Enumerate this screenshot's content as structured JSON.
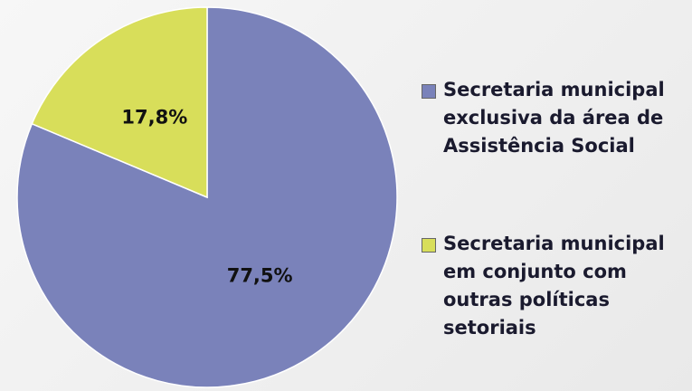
{
  "chart_data": {
    "type": "pie",
    "categories": [
      "Secretaria municipal exclusiva da área de Assistência Social",
      "Secretaria municipal em conjunto com outras políticas setoriais"
    ],
    "values": [
      77.5,
      17.8
    ],
    "value_labels": [
      "77,5%",
      "17,8%"
    ],
    "colors": [
      "#7a82ba",
      "#d8de5a"
    ],
    "legend": "right"
  }
}
